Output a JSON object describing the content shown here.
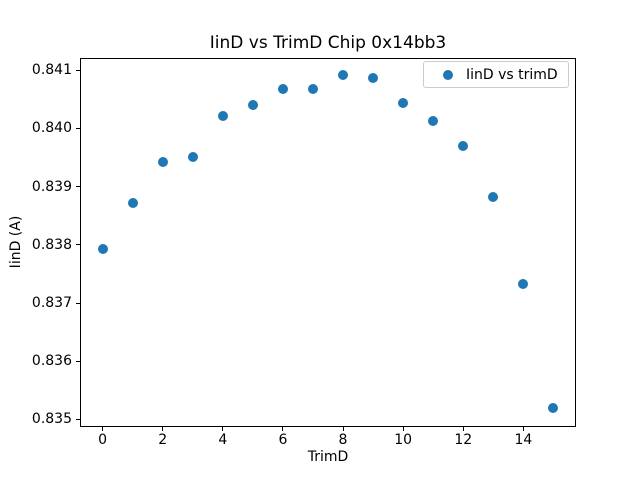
{
  "chart_data": {
    "type": "scatter",
    "title": "IinD vs TrimD Chip 0x14bb3",
    "xlabel": "TrimD",
    "ylabel": "IinD (A)",
    "series": [
      {
        "name": "IinD vs trimD",
        "x": [
          0,
          1,
          2,
          3,
          4,
          5,
          6,
          7,
          8,
          9,
          10,
          11,
          12,
          13,
          14,
          15
        ],
        "y": [
          0.83792,
          0.83872,
          0.83943,
          0.83951,
          0.84021,
          0.84041,
          0.84067,
          0.84068,
          0.84092,
          0.84086,
          0.84044,
          0.84013,
          0.8397,
          0.83883,
          0.83733,
          0.83519
        ]
      }
    ],
    "xlim": [
      -0.75,
      15.75
    ],
    "ylim": [
      0.83487,
      0.84121
    ],
    "xticks": [
      0,
      2,
      4,
      6,
      8,
      10,
      12,
      14
    ],
    "yticks": [
      0.835,
      0.836,
      0.837,
      0.838,
      0.839,
      0.84,
      0.841
    ],
    "ytick_decimals": 3,
    "grid": false,
    "legend_position": "upper right",
    "marker_color": "#1f77b4",
    "background_color": "#ffffff",
    "spine_color": "#000000"
  }
}
